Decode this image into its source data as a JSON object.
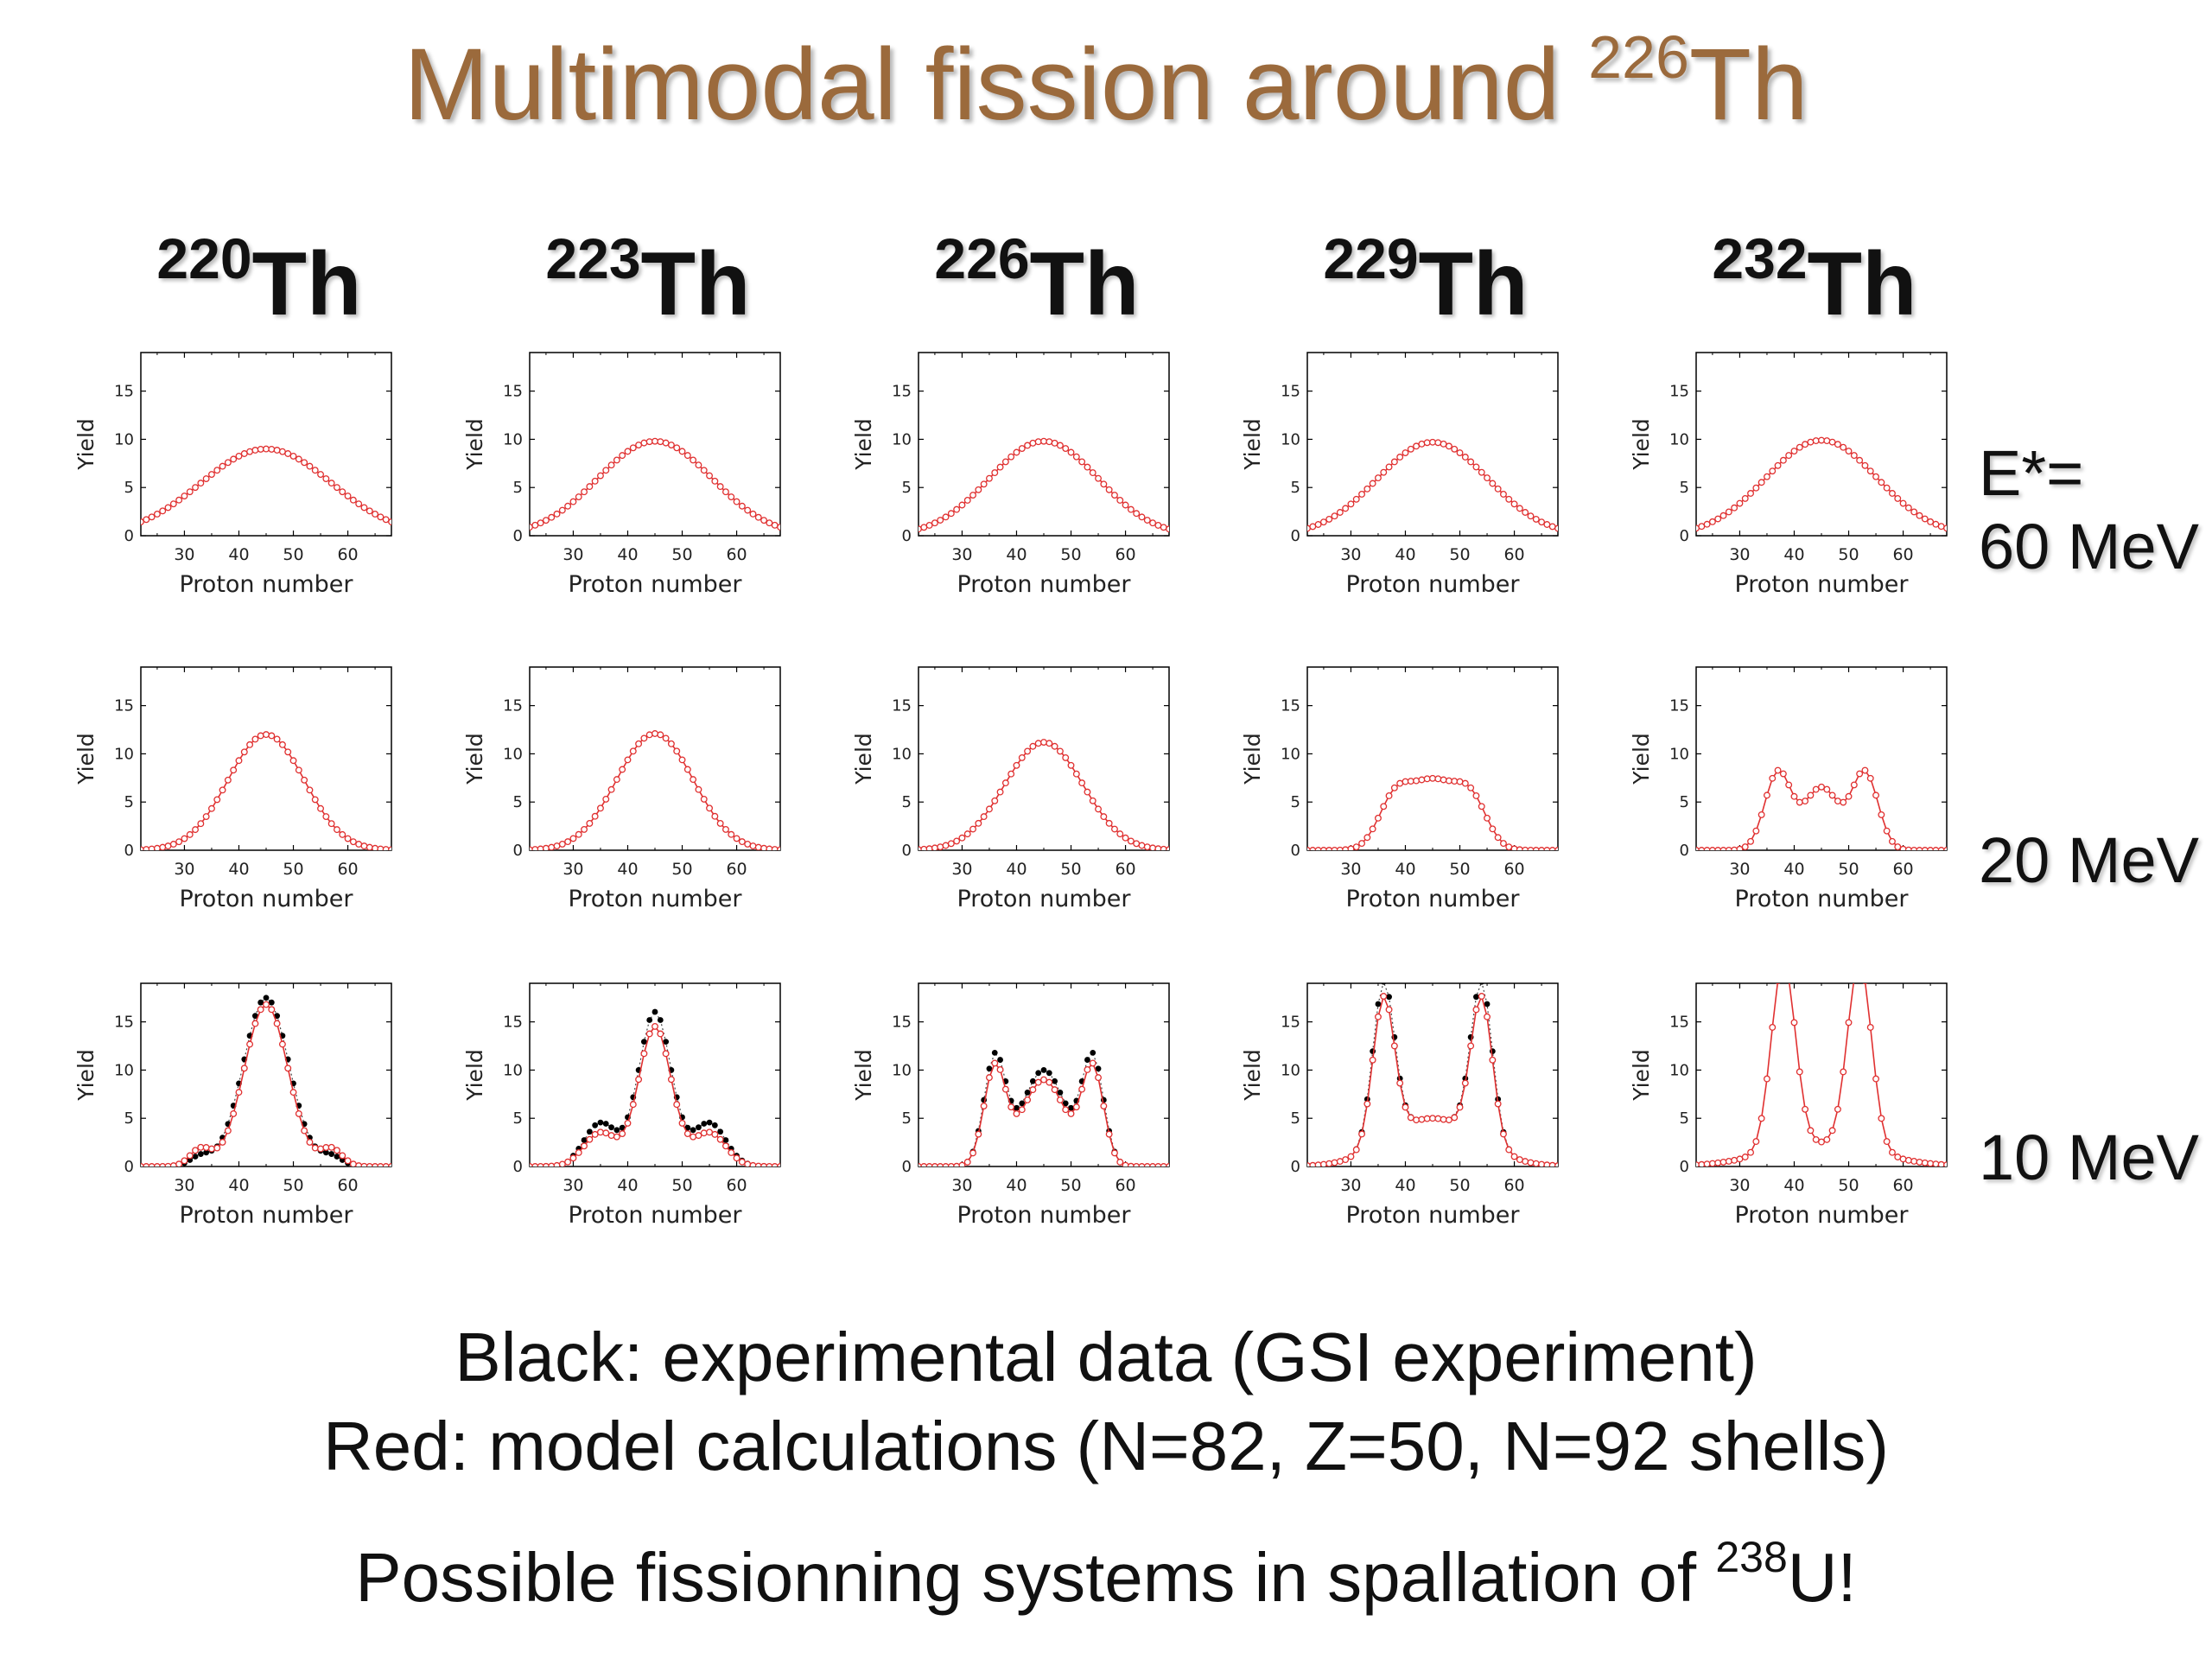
{
  "title": {
    "text": "Multimodal fission around ",
    "mass": "226",
    "element": "Th"
  },
  "columns": [
    {
      "mass": "220",
      "element": "Th"
    },
    {
      "mass": "223",
      "element": "Th"
    },
    {
      "mass": "226",
      "element": "Th"
    },
    {
      "mass": "229",
      "element": "Th"
    },
    {
      "mass": "232",
      "element": "Th"
    }
  ],
  "energy_labels": {
    "row0_line1": "E*=",
    "row0_line2": "60 MeV",
    "row1": "20 MeV",
    "row2": "10 MeV"
  },
  "captions": {
    "line1": "Black: experimental data (GSI experiment)",
    "line2": "Red: model calculations (N=82, Z=50, N=92 shells)",
    "line3_text": "Possible fissionning systems in spallation of ",
    "line3_mass": "238",
    "line3_tail": "U!"
  },
  "colors": {
    "title": "#9b6a3c",
    "model": "#e03030",
    "experiment": "#000000"
  },
  "chart_data": {
    "type": "line",
    "panel_grid": {
      "rows": [
        "60 MeV",
        "20 MeV",
        "10 MeV"
      ],
      "columns": [
        "220Th",
        "223Th",
        "226Th",
        "229Th",
        "232Th"
      ]
    },
    "xlabel": "Proton number",
    "ylabel": "Yield",
    "xlim": [
      22,
      68
    ],
    "ylim": [
      0,
      19
    ],
    "xticks": [
      30,
      40,
      50,
      60
    ],
    "yticks": [
      0,
      5,
      10,
      15
    ],
    "series_style": {
      "model": "red line with open circles",
      "experiment": "black filled dots with dotted line"
    },
    "panels": [
      [
        {
          "model_peaks": [
            [
              45,
              9.0,
              12.0
            ]
          ]
        },
        {
          "model_peaks": [
            [
              45,
              9.8,
              10.5
            ]
          ]
        },
        {
          "model_peaks": [
            [
              45,
              9.8,
              10.0
            ]
          ]
        },
        {
          "model_peaks": [
            [
              45,
              9.7,
              10.2
            ]
          ]
        },
        {
          "model_peaks": [
            [
              45,
              9.9,
              10.2
            ]
          ]
        }
      ],
      [
        {
          "model_peaks": [
            [
              45,
              12.0,
              7.0
            ]
          ]
        },
        {
          "model_peaks": [
            [
              45,
              12.1,
              7.0
            ]
          ]
        },
        {
          "model_peaks": [
            [
              45,
              11.2,
              7.2
            ]
          ]
        },
        {
          "model_peaks": [
            [
              38,
              5.0,
              3.0
            ],
            [
              45,
              6.8,
              4.0
            ],
            [
              52,
              5.0,
              3.0
            ]
          ]
        },
        {
          "model_peaks": [
            [
              37,
              8.0,
              2.4
            ],
            [
              45,
              6.5,
              3.2
            ],
            [
              53,
              8.0,
              2.4
            ]
          ]
        }
      ],
      [
        {
          "model_peaks": [
            [
              45,
              16.8,
              4.0
            ],
            [
              33,
              1.8,
              2.0
            ],
            [
              57,
              1.8,
              2.0
            ]
          ],
          "exp_peaks": [
            [
              45,
              17.5,
              4.2
            ],
            [
              33,
              1.0,
              2.0
            ],
            [
              57,
              1.0,
              2.0
            ]
          ]
        },
        {
          "model_peaks": [
            [
              45,
              14.5,
              3.0
            ],
            [
              35,
              3.5,
              3.0
            ],
            [
              55,
              3.5,
              3.0
            ]
          ],
          "exp_peaks": [
            [
              45,
              16.0,
              3.0
            ],
            [
              35,
              4.5,
              3.0
            ],
            [
              55,
              4.5,
              3.0
            ]
          ]
        },
        {
          "model_peaks": [
            [
              36,
              10.0,
              2.0
            ],
            [
              54,
              10.0,
              2.0
            ],
            [
              45,
              9.0,
              4.0
            ]
          ],
          "exp_peaks": [
            [
              36,
              11.0,
              2.0
            ],
            [
              54,
              11.0,
              2.0
            ],
            [
              45,
              10.0,
              4.0
            ]
          ]
        },
        {
          "model_peaks": [
            [
              36,
              15.0,
              2.0
            ],
            [
              54,
              15.0,
              2.0
            ],
            [
              45,
              5.0,
              8.0
            ]
          ],
          "exp_peaks": [
            [
              36,
              16.5,
              2.0
            ],
            [
              54,
              16.5,
              2.0
            ],
            [
              45,
              5.0,
              8.0
            ]
          ]
        },
        {
          "model_peaks": [
            [
              38,
              19.5,
              2.2
            ],
            [
              52,
              19.5,
              2.2
            ],
            [
              45,
              2.3,
              10.0
            ]
          ]
        }
      ]
    ]
  }
}
